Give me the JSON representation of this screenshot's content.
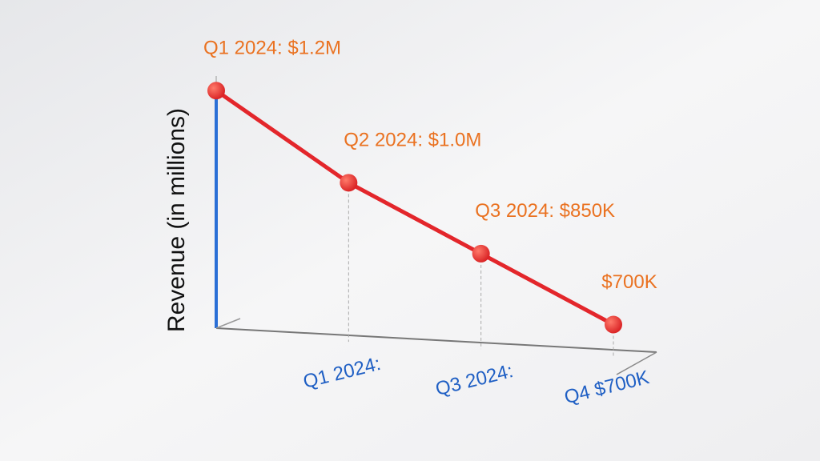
{
  "chart_data": {
    "type": "line",
    "y_label": "Revenue (in millions)",
    "categories": [
      null,
      "Q1 2024:",
      "Q3 2024:",
      "Q4 $700K"
    ],
    "values": [
      1.2,
      1.0,
      0.85,
      0.7
    ],
    "value_labels": [
      "Q1 2024: $1.2M",
      "Q2 2024: $1.0M",
      "Q3 2024: $850K",
      "$700K"
    ],
    "color": "#e3262b",
    "ylim": [
      0.64,
      1.225
    ]
  }
}
